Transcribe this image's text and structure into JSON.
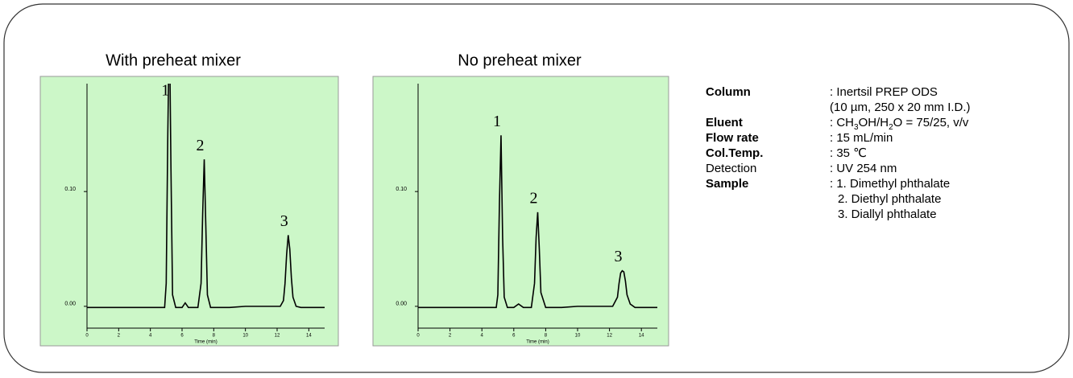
{
  "chart_data": [
    {
      "type": "line",
      "title": "With preheat mixer",
      "x_label": "Time (min)",
      "x": [
        0,
        1,
        3,
        4.9,
        5.0,
        5.1,
        5.2,
        5.3,
        5.4,
        5.6,
        6.0,
        6.2,
        6.4,
        7.0,
        7.2,
        7.3,
        7.4,
        7.5,
        7.6,
        7.8,
        9,
        10,
        11,
        12.2,
        12.4,
        12.5,
        12.6,
        12.7,
        12.8,
        12.9,
        13.0,
        13.2,
        13.5,
        15
      ],
      "series": [
        {
          "color": "#000000",
          "values": [
            -0.001,
            -0.001,
            -0.001,
            -0.001,
            0.02,
            0.15,
            0.25,
            0.12,
            0.01,
            -0.001,
            -0.001,
            0.003,
            -0.001,
            -0.001,
            0.02,
            0.08,
            0.128,
            0.07,
            0.01,
            -0.001,
            -0.001,
            0,
            0,
            0,
            0.005,
            0.02,
            0.045,
            0.062,
            0.05,
            0.025,
            0.008,
            0,
            -0.001,
            -0.001
          ]
        }
      ],
      "xlim": [
        0,
        15
      ],
      "xticks": [
        0,
        2,
        4,
        6,
        8,
        10,
        12,
        14
      ],
      "ylim": [
        -0.019,
        0.194
      ],
      "yticks": [
        {
          "value": 0,
          "label": "0.00"
        },
        {
          "value": 0.1,
          "label": "0.10"
        }
      ],
      "peak_labels": [
        "1",
        "2",
        "3"
      ],
      "background": "#ccf7c8"
    },
    {
      "type": "line",
      "title": "No preheat mixer",
      "x_label": "Time (min)",
      "x": [
        0,
        1,
        3,
        4.9,
        5.0,
        5.1,
        5.2,
        5.3,
        5.4,
        5.6,
        6.0,
        6.3,
        6.6,
        7.1,
        7.3,
        7.4,
        7.5,
        7.6,
        7.7,
        8.0,
        9,
        10,
        11,
        12.2,
        12.5,
        12.6,
        12.7,
        12.8,
        12.9,
        13.0,
        13.1,
        13.3,
        13.6,
        15
      ],
      "series": [
        {
          "color": "#000000",
          "values": [
            -0.001,
            -0.001,
            -0.001,
            -0.001,
            0.01,
            0.09,
            0.149,
            0.06,
            0.008,
            -0.001,
            -0.001,
            0.002,
            -0.001,
            -0.001,
            0.02,
            0.06,
            0.082,
            0.05,
            0.012,
            -0.001,
            -0.001,
            0,
            0,
            0,
            0.008,
            0.02,
            0.029,
            0.031,
            0.03,
            0.022,
            0.01,
            0.002,
            -0.001,
            -0.001
          ]
        }
      ],
      "xlim": [
        0,
        15
      ],
      "xticks": [
        0,
        2,
        4,
        6,
        8,
        10,
        12,
        14
      ],
      "ylim": [
        -0.019,
        0.194
      ],
      "yticks": [
        {
          "value": 0,
          "label": "0.00"
        },
        {
          "value": 0.1,
          "label": "0.10"
        }
      ],
      "peak_labels": [
        "1",
        "2",
        "3"
      ],
      "background": "#ccf7c8"
    }
  ],
  "conditions": [
    {
      "label": "Column",
      "bold": true,
      "lines": [
        [
          ": Inertsil PREP ODS"
        ],
        [
          "(10 µm, 250 x 20 mm I.D.)"
        ]
      ]
    },
    {
      "label": "Eluent",
      "bold": true,
      "lines": [
        [
          ": CH",
          "3",
          "OH/H",
          "2",
          "O = 75/25, v/v"
        ]
      ]
    },
    {
      "label": "Flow rate",
      "bold": true,
      "lines": [
        [
          ": 15 mL/min"
        ]
      ]
    },
    {
      "label": "Col.Temp.",
      "bold": true,
      "lines": [
        [
          ": 35 ℃"
        ]
      ]
    },
    {
      "label": "Detection",
      "bold": false,
      "lines": [
        [
          ": UV 254 nm"
        ]
      ]
    },
    {
      "label": "Sample",
      "bold": true,
      "lines": [
        [
          ": 1. Dimethyl phthalate"
        ],
        [
          "2. Diethyl phthalate"
        ],
        [
          "3. Diallyl phthalate"
        ]
      ]
    }
  ]
}
